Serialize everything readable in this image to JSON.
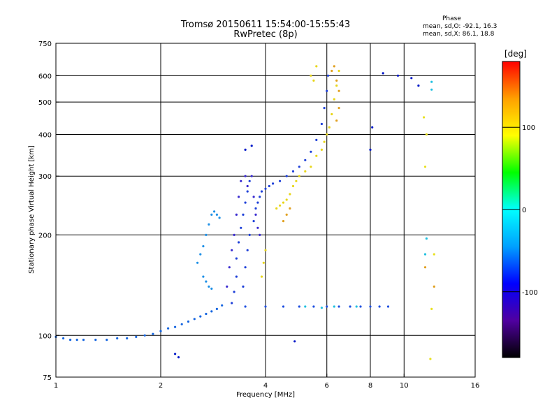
{
  "chart_data": {
    "type": "scatter",
    "title": "Tromsø 20150611 15:54:00-15:55:43",
    "subtitle": "RwPretec (8p)",
    "xlabel": "Frequency [MHz]",
    "ylabel": "Stationary phase Virtual Height [km]",
    "x_scale": "log",
    "y_scale": "log",
    "xlim": [
      1,
      16
    ],
    "ylim": [
      75,
      750
    ],
    "x_ticks": [
      1,
      2,
      4,
      6,
      8,
      10,
      16
    ],
    "x_tick_labels": [
      "1",
      "2",
      "4",
      "6",
      "8",
      "10",
      "16"
    ],
    "x_gridlines": [
      2,
      4,
      6,
      8,
      10
    ],
    "y_ticks": [
      75,
      100,
      200,
      300,
      400,
      500,
      600,
      750
    ],
    "y_tick_labels": [
      "75",
      "100",
      "200",
      "300",
      "400",
      "500",
      "600",
      "750"
    ],
    "y_gridlines": [
      100,
      200,
      300,
      400,
      500,
      600
    ],
    "grid": true,
    "phase_stats": {
      "title": "Phase",
      "o_mode": "mean, sd,O: -92.1, 16.3",
      "x_mode": "mean, sd,X: 86.1, 18.8"
    },
    "colorbar": {
      "label": "[deg]",
      "range": [
        -180,
        180
      ],
      "ticks": [
        100,
        0,
        -100
      ],
      "tick_labels": [
        "100",
        "0",
        "-100"
      ],
      "colors": [
        "#000000",
        "#5000a0",
        "#0000ff",
        "#00a0ff",
        "#00ffff",
        "#00ff00",
        "#ffff00",
        "#ffa000",
        "#ff0000"
      ],
      "placement": "right"
    },
    "series": [
      {
        "phase_color": "#1565e0",
        "points": [
          [
            1.0,
            99
          ],
          [
            1.05,
            98
          ],
          [
            1.1,
            97
          ],
          [
            1.15,
            97
          ],
          [
            1.2,
            97
          ],
          [
            1.3,
            97
          ],
          [
            1.4,
            97
          ],
          [
            1.5,
            98
          ],
          [
            1.6,
            98
          ],
          [
            1.7,
            99
          ],
          [
            1.8,
            100
          ],
          [
            1.9,
            101
          ],
          [
            2.0,
            103
          ],
          [
            2.1,
            105
          ],
          [
            2.2,
            106
          ],
          [
            2.3,
            108
          ],
          [
            2.4,
            110
          ],
          [
            2.5,
            112
          ],
          [
            2.6,
            114
          ],
          [
            2.7,
            116
          ],
          [
            2.8,
            118
          ],
          [
            2.9,
            120
          ],
          [
            3.0,
            123
          ]
        ]
      },
      {
        "phase_color": "#1e40d8",
        "points": [
          [
            3.2,
            125
          ],
          [
            3.25,
            135
          ],
          [
            3.3,
            150
          ],
          [
            3.3,
            170
          ],
          [
            3.35,
            190
          ],
          [
            3.4,
            210
          ],
          [
            3.45,
            230
          ],
          [
            3.5,
            250
          ],
          [
            3.55,
            270
          ],
          [
            3.6,
            290
          ],
          [
            3.45,
            140
          ],
          [
            3.5,
            160
          ],
          [
            3.55,
            180
          ],
          [
            3.6,
            200
          ],
          [
            3.7,
            220
          ],
          [
            3.75,
            240
          ],
          [
            3.8,
            250
          ],
          [
            3.85,
            260
          ],
          [
            3.9,
            270
          ],
          [
            4.0,
            275
          ],
          [
            4.1,
            280
          ],
          [
            4.2,
            285
          ],
          [
            4.4,
            290
          ],
          [
            4.6,
            300
          ],
          [
            4.8,
            310
          ],
          [
            5.0,
            320
          ],
          [
            5.2,
            335
          ],
          [
            5.4,
            355
          ],
          [
            5.6,
            385
          ],
          [
            5.8,
            430
          ],
          [
            5.9,
            480
          ],
          [
            6.0,
            540
          ],
          [
            6.05,
            600
          ]
        ]
      },
      {
        "phase_color": "#3a2bd0",
        "points": [
          [
            3.1,
            140
          ],
          [
            3.15,
            160
          ],
          [
            3.2,
            180
          ],
          [
            3.25,
            200
          ],
          [
            3.3,
            230
          ],
          [
            3.35,
            260
          ],
          [
            3.4,
            290
          ],
          [
            3.5,
            300
          ],
          [
            3.55,
            280
          ],
          [
            3.65,
            300
          ],
          [
            3.7,
            260
          ],
          [
            3.75,
            230
          ],
          [
            3.8,
            210
          ],
          [
            3.85,
            200
          ]
        ]
      },
      {
        "phase_color": "#1e90e6",
        "points": [
          [
            2.55,
            165
          ],
          [
            2.6,
            175
          ],
          [
            2.65,
            185
          ],
          [
            2.7,
            200
          ],
          [
            2.75,
            215
          ],
          [
            2.8,
            230
          ],
          [
            2.85,
            235
          ],
          [
            2.9,
            230
          ],
          [
            2.95,
            225
          ],
          [
            2.65,
            150
          ],
          [
            2.7,
            145
          ],
          [
            2.75,
            140
          ],
          [
            2.8,
            138
          ]
        ]
      },
      {
        "phase_color": "#e8d61a",
        "points": [
          [
            4.3,
            240
          ],
          [
            4.4,
            245
          ],
          [
            4.5,
            250
          ],
          [
            4.6,
            255
          ],
          [
            4.7,
            265
          ],
          [
            4.8,
            280
          ],
          [
            4.9,
            290
          ],
          [
            5.0,
            300
          ],
          [
            5.2,
            310
          ],
          [
            5.4,
            320
          ],
          [
            5.6,
            345
          ],
          [
            5.8,
            360
          ],
          [
            5.9,
            380
          ],
          [
            6.0,
            400
          ],
          [
            6.1,
            420
          ],
          [
            6.2,
            460
          ],
          [
            6.3,
            510
          ],
          [
            6.4,
            560
          ],
          [
            6.5,
            620
          ],
          [
            3.9,
            150
          ],
          [
            3.95,
            165
          ],
          [
            4.0,
            180
          ],
          [
            5.4,
            600
          ],
          [
            5.6,
            640
          ],
          [
            5.5,
            580
          ]
        ]
      },
      {
        "phase_color": "#e0a020",
        "points": [
          [
            4.5,
            220
          ],
          [
            4.6,
            230
          ],
          [
            4.7,
            240
          ],
          [
            6.2,
            620
          ],
          [
            6.3,
            640
          ],
          [
            6.4,
            580
          ],
          [
            6.5,
            540
          ],
          [
            6.5,
            480
          ],
          [
            6.4,
            440
          ],
          [
            11.5,
            160
          ],
          [
            12.2,
            140
          ]
        ]
      },
      {
        "phase_color": "#2050e0",
        "points": [
          [
            3.5,
            122
          ],
          [
            4.0,
            122
          ],
          [
            4.5,
            122
          ],
          [
            5.0,
            122
          ],
          [
            5.5,
            122
          ],
          [
            6.0,
            122
          ],
          [
            6.5,
            122
          ],
          [
            7.0,
            122
          ],
          [
            7.5,
            122
          ],
          [
            8.0,
            122
          ],
          [
            8.5,
            122
          ],
          [
            9.0,
            122
          ]
        ]
      },
      {
        "phase_color": "#20c0e0",
        "points": [
          [
            5.2,
            122
          ],
          [
            5.8,
            121
          ],
          [
            6.3,
            122
          ],
          [
            7.3,
            122
          ],
          [
            11.6,
            195
          ],
          [
            11.5,
            175
          ],
          [
            12.0,
            575
          ],
          [
            12.0,
            545
          ]
        ]
      },
      {
        "phase_color": "#0018c8",
        "points": [
          [
            8.7,
            610
          ],
          [
            9.6,
            600
          ],
          [
            10.5,
            590
          ],
          [
            11.0,
            560
          ],
          [
            8.1,
            420
          ],
          [
            8.0,
            360
          ],
          [
            2.2,
            88
          ],
          [
            2.25,
            86
          ],
          [
            4.85,
            96
          ],
          [
            3.65,
            370
          ],
          [
            3.5,
            360
          ]
        ]
      },
      {
        "phase_color": "#e8e020",
        "points": [
          [
            11.5,
            320
          ],
          [
            11.6,
            400
          ],
          [
            11.4,
            450
          ],
          [
            12.0,
            120
          ],
          [
            11.9,
            85
          ],
          [
            12.2,
            175
          ]
        ]
      }
    ]
  }
}
